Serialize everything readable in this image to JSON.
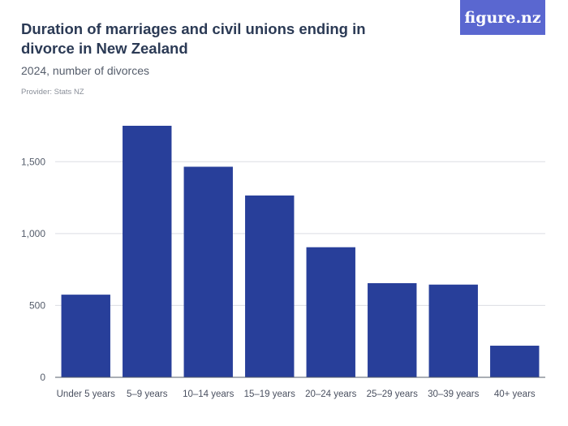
{
  "header": {
    "title": "Duration of marriages and civil unions ending in divorce in New Zealand",
    "subtitle": "2024, number of divorces",
    "provider": "Provider: Stats NZ",
    "logo_text": "figure.nz"
  },
  "colors": {
    "bar": "#283f9a",
    "grid": "#dcdde3",
    "axis": "#555d6b",
    "logo_bg": "#5a67d0"
  },
  "chart_data": {
    "type": "bar",
    "title": "Duration of marriages and civil unions ending in divorce in New Zealand",
    "subtitle": "2024, number of divorces",
    "xlabel": "",
    "ylabel": "",
    "categories": [
      "Under 5 years",
      "5–9 years",
      "10–14 years",
      "15–19 years",
      "20–24 years",
      "25–29 years",
      "30–39 years",
      "40+ years"
    ],
    "values": [
      575,
      1750,
      1465,
      1265,
      905,
      655,
      645,
      220
    ],
    "ylim": [
      0,
      1750
    ],
    "yticks": [
      0,
      500,
      1000,
      1500
    ],
    "ytick_labels": [
      "0",
      "500",
      "1,000",
      "1,500"
    ],
    "grid": true,
    "legend": "none"
  }
}
